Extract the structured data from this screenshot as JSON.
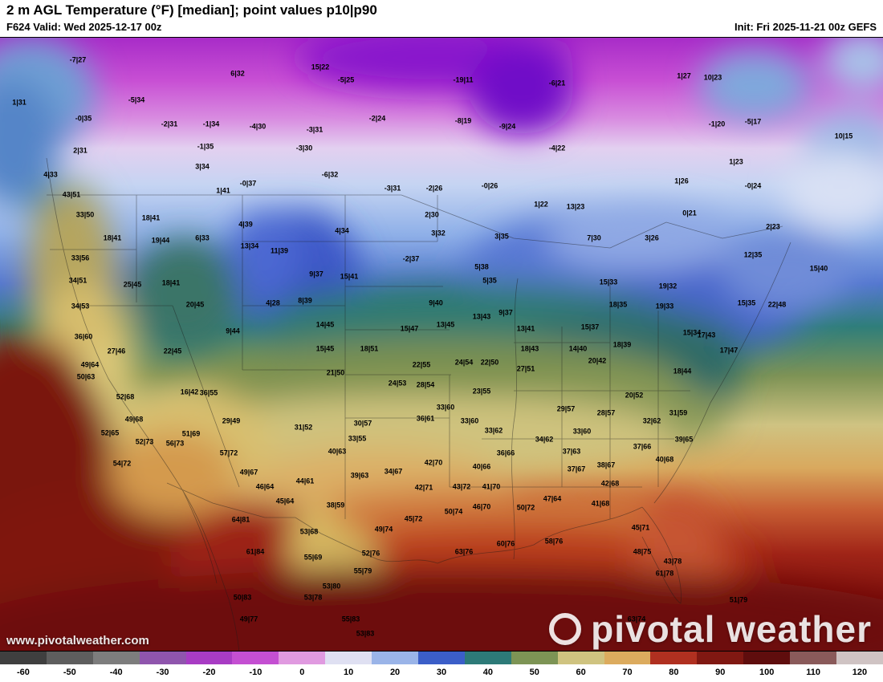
{
  "header": {
    "title": "2 m AGL Temperature (°F) [median]; point values p10|p90",
    "valid": "F624 Valid: Wed 2025-12-17 00z",
    "init": "Init: Fri 2025-11-21 00z GEFS"
  },
  "watermark": {
    "brand": "pivotal weather",
    "site": "www.pivotalweather.com"
  },
  "colorbar": {
    "ticks": [
      "-60",
      "-50",
      "-40",
      "-30",
      "-20",
      "-10",
      "0",
      "10",
      "20",
      "30",
      "40",
      "50",
      "60",
      "70",
      "80",
      "90",
      "100",
      "110",
      "120"
    ],
    "colors": [
      "#3f3f3f",
      "#5e5e5e",
      "#7d7d7d",
      "#8f55ad",
      "#a83cc4",
      "#c44fd2",
      "#e09ae0",
      "#dfe0f2",
      "#9ab4e8",
      "#3b5ec8",
      "#2d7a78",
      "#7d9455",
      "#cfc380",
      "#dcab5e",
      "#b03020",
      "#801812",
      "#5f0d0d",
      "#8a5a5a",
      "#cfc3c3"
    ]
  },
  "map": {
    "points": [
      [
        97,
        75,
        "-7|27"
      ],
      [
        296,
        92,
        "6|32"
      ],
      [
        399,
        84,
        "15|22"
      ],
      [
        431,
        100,
        "-5|25"
      ],
      [
        577,
        100,
        "-19|11"
      ],
      [
        694,
        104,
        "-6|21"
      ],
      [
        852,
        95,
        "1|27"
      ],
      [
        888,
        97,
        "10|23"
      ],
      [
        24,
        128,
        "1|31"
      ],
      [
        170,
        125,
        "-5|34"
      ],
      [
        104,
        148,
        "-0|35"
      ],
      [
        211,
        155,
        "-2|31"
      ],
      [
        263,
        155,
        "-1|34"
      ],
      [
        321,
        158,
        "-4|30"
      ],
      [
        392,
        162,
        "-3|31"
      ],
      [
        470,
        148,
        "-2|24"
      ],
      [
        577,
        151,
        "-8|19"
      ],
      [
        632,
        158,
        "-9|24"
      ],
      [
        893,
        155,
        "-1|20"
      ],
      [
        938,
        152,
        "-5|17"
      ],
      [
        1051,
        170,
        "10|15"
      ],
      [
        100,
        188,
        "2|31"
      ],
      [
        256,
        183,
        "-1|35"
      ],
      [
        379,
        185,
        "-3|30"
      ],
      [
        694,
        185,
        "-4|22"
      ],
      [
        917,
        202,
        "1|23"
      ],
      [
        63,
        218,
        "4|33"
      ],
      [
        252,
        208,
        "3|34"
      ],
      [
        411,
        218,
        "-6|32"
      ],
      [
        309,
        229,
        "-0|37"
      ],
      [
        278,
        238,
        "1|41"
      ],
      [
        489,
        235,
        "-3|31"
      ],
      [
        541,
        235,
        "-2|26"
      ],
      [
        610,
        232,
        "-0|26"
      ],
      [
        849,
        226,
        "1|26"
      ],
      [
        938,
        232,
        "-0|24"
      ],
      [
        89,
        243,
        "43|51"
      ],
      [
        674,
        255,
        "1|22"
      ],
      [
        717,
        258,
        "13|23"
      ],
      [
        859,
        266,
        "0|21"
      ],
      [
        106,
        268,
        "33|50"
      ],
      [
        188,
        272,
        "18|41"
      ],
      [
        306,
        280,
        "4|39"
      ],
      [
        426,
        288,
        "4|34"
      ],
      [
        538,
        268,
        "2|30"
      ],
      [
        546,
        291,
        "3|32"
      ],
      [
        963,
        283,
        "2|23"
      ],
      [
        140,
        297,
        "18|41"
      ],
      [
        200,
        300,
        "19|44"
      ],
      [
        252,
        297,
        "6|33"
      ],
      [
        311,
        307,
        "13|34"
      ],
      [
        348,
        313,
        "11|39"
      ],
      [
        625,
        295,
        "3|35"
      ],
      [
        740,
        297,
        "7|30"
      ],
      [
        812,
        297,
        "3|26"
      ],
      [
        100,
        322,
        "33|56"
      ],
      [
        512,
        323,
        "-2|37"
      ],
      [
        938,
        318,
        "12|35"
      ],
      [
        1020,
        335,
        "15|40"
      ],
      [
        97,
        350,
        "34|51"
      ],
      [
        165,
        355,
        "25|45"
      ],
      [
        213,
        353,
        "18|41"
      ],
      [
        394,
        342,
        "9|37"
      ],
      [
        435,
        345,
        "15|41"
      ],
      [
        600,
        333,
        "5|38"
      ],
      [
        758,
        352,
        "15|33"
      ],
      [
        832,
        357,
        "19|32"
      ],
      [
        100,
        382,
        "34|53"
      ],
      [
        243,
        380,
        "20|45"
      ],
      [
        340,
        378,
        "4|28"
      ],
      [
        380,
        375,
        "8|39"
      ],
      [
        610,
        350,
        "5|35"
      ],
      [
        543,
        378,
        "9|40"
      ],
      [
        770,
        380,
        "18|35"
      ],
      [
        828,
        382,
        "19|33"
      ],
      [
        930,
        378,
        "15|35"
      ],
      [
        968,
        380,
        "22|48"
      ],
      [
        104,
        420,
        "36|60"
      ],
      [
        290,
        413,
        "9|44"
      ],
      [
        405,
        405,
        "14|45"
      ],
      [
        405,
        435,
        "15|45"
      ],
      [
        510,
        410,
        "15|47"
      ],
      [
        555,
        405,
        "13|45"
      ],
      [
        600,
        395,
        "13|43"
      ],
      [
        630,
        390,
        "9|37"
      ],
      [
        655,
        410,
        "13|41"
      ],
      [
        735,
        408,
        "15|37"
      ],
      [
        720,
        435,
        "14|40"
      ],
      [
        660,
        435,
        "18|43"
      ],
      [
        775,
        430,
        "18|39"
      ],
      [
        862,
        415,
        "15|34"
      ],
      [
        880,
        418,
        "17|43"
      ],
      [
        145,
        438,
        "27|46"
      ],
      [
        215,
        438,
        "22|45"
      ],
      [
        460,
        435,
        "18|51"
      ],
      [
        908,
        437,
        "17|47"
      ],
      [
        112,
        455,
        "49|64"
      ],
      [
        107,
        470,
        "50|63"
      ],
      [
        418,
        465,
        "21|50"
      ],
      [
        525,
        455,
        "22|55"
      ],
      [
        578,
        452,
        "24|54"
      ],
      [
        610,
        452,
        "22|50"
      ],
      [
        655,
        460,
        "27|51"
      ],
      [
        744,
        450,
        "20|42"
      ],
      [
        850,
        463,
        "18|44"
      ],
      [
        156,
        495,
        "52|68"
      ],
      [
        236,
        489,
        "16|42"
      ],
      [
        260,
        490,
        "36|55"
      ],
      [
        495,
        478,
        "24|53"
      ],
      [
        530,
        480,
        "28|54"
      ],
      [
        600,
        488,
        "23|55"
      ],
      [
        790,
        493,
        "20|52"
      ],
      [
        705,
        510,
        "29|57"
      ],
      [
        755,
        515,
        "28|57"
      ],
      [
        845,
        515,
        "31|59"
      ],
      [
        167,
        523,
        "49|68"
      ],
      [
        288,
        525,
        "29|49"
      ],
      [
        555,
        508,
        "33|60"
      ],
      [
        530,
        522,
        "36|61"
      ],
      [
        585,
        525,
        "33|60"
      ],
      [
        812,
        525,
        "32|62"
      ],
      [
        137,
        540,
        "52|65"
      ],
      [
        238,
        541,
        "51|69"
      ],
      [
        378,
        533,
        "31|52"
      ],
      [
        452,
        528,
        "30|57"
      ],
      [
        445,
        547,
        "33|55"
      ],
      [
        615,
        537,
        "33|62"
      ],
      [
        678,
        548,
        "34|62"
      ],
      [
        725,
        538,
        "33|60"
      ],
      [
        852,
        548,
        "39|65"
      ],
      [
        180,
        551,
        "52|73"
      ],
      [
        218,
        553,
        "56|73"
      ],
      [
        285,
        565,
        "57|72"
      ],
      [
        420,
        563,
        "40|63"
      ],
      [
        630,
        565,
        "36|66"
      ],
      [
        712,
        563,
        "37|63"
      ],
      [
        800,
        557,
        "37|66"
      ],
      [
        828,
        573,
        "40|68"
      ],
      [
        152,
        578,
        "54|72"
      ],
      [
        310,
        589,
        "49|67"
      ],
      [
        490,
        588,
        "34|67"
      ],
      [
        540,
        577,
        "42|70"
      ],
      [
        600,
        582,
        "40|66"
      ],
      [
        755,
        580,
        "38|67"
      ],
      [
        718,
        585,
        "37|67"
      ],
      [
        380,
        600,
        "44|61"
      ],
      [
        448,
        593,
        "39|63"
      ],
      [
        330,
        607,
        "46|64"
      ],
      [
        528,
        608,
        "42|71"
      ],
      [
        575,
        607,
        "43|72"
      ],
      [
        612,
        607,
        "41|70"
      ],
      [
        760,
        603,
        "42|68"
      ],
      [
        748,
        628,
        "41|68"
      ],
      [
        355,
        625,
        "45|64"
      ],
      [
        418,
        630,
        "38|59"
      ],
      [
        565,
        638,
        "50|74"
      ],
      [
        600,
        632,
        "46|70"
      ],
      [
        655,
        633,
        "50|72"
      ],
      [
        688,
        622,
        "47|64"
      ],
      [
        798,
        658,
        "45|71"
      ],
      [
        515,
        647,
        "45|72"
      ],
      [
        385,
        663,
        "53|68"
      ],
      [
        478,
        660,
        "49|74"
      ],
      [
        300,
        648,
        "64|81"
      ],
      [
        318,
        688,
        "61|84"
      ],
      [
        390,
        695,
        "55|69"
      ],
      [
        462,
        690,
        "52|76"
      ],
      [
        578,
        688,
        "63|76"
      ],
      [
        630,
        678,
        "60|76"
      ],
      [
        690,
        675,
        "58|76"
      ],
      [
        800,
        688,
        "48|75"
      ],
      [
        838,
        700,
        "43|78"
      ],
      [
        452,
        712,
        "55|79"
      ],
      [
        413,
        731,
        "53|80"
      ],
      [
        828,
        715,
        "61|78"
      ],
      [
        302,
        745,
        "50|83"
      ],
      [
        390,
        745,
        "53|78"
      ],
      [
        920,
        748,
        "51|79"
      ],
      [
        310,
        772,
        "49|77"
      ],
      [
        437,
        772,
        "55|83"
      ],
      [
        455,
        790,
        "53|83"
      ],
      [
        793,
        772,
        "63|74"
      ]
    ]
  }
}
